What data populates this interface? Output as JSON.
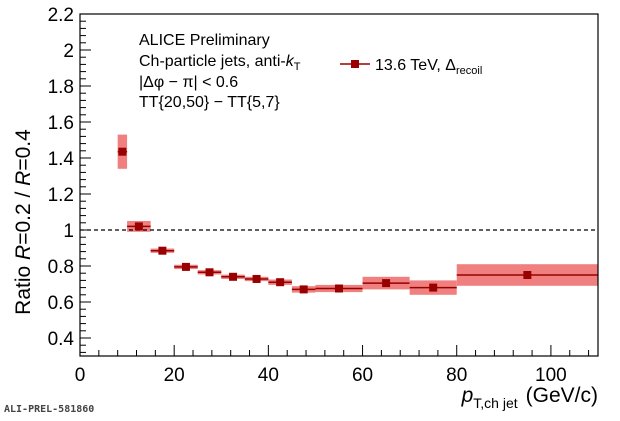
{
  "chart_data": {
    "type": "scatter",
    "title": "",
    "xlabel": {
      "var": "p",
      "sub": "T,ch jet",
      "unit": "(GeV/c)"
    },
    "ylabel": {
      "prefix": "Ratio ",
      "r1": "R",
      "v1": "=0.2 / ",
      "r2": "R",
      "v2": "=0.4"
    },
    "xlim": [
      0,
      110
    ],
    "ylim": [
      0.3,
      2.2
    ],
    "xticks": [
      0,
      20,
      40,
      60,
      80,
      100
    ],
    "yticks": [
      0.4,
      0.6,
      0.8,
      1,
      1.2,
      1.4,
      1.6,
      1.8,
      2,
      2.2
    ],
    "reference_line": 1,
    "series": [
      {
        "name": "13.6 TeV, Δrecoil",
        "color": "#990000",
        "sys_color": "#f08080",
        "points": [
          {
            "x": 9,
            "xlo": 8,
            "xhi": 10,
            "y": 1.435,
            "stat": 0.012,
            "sys": 0.095
          },
          {
            "x": 12.5,
            "xlo": 10,
            "xhi": 15,
            "y": 1.02,
            "stat": 0.01,
            "sys": 0.03
          },
          {
            "x": 17.5,
            "xlo": 15,
            "xhi": 20,
            "y": 0.885,
            "stat": 0.008,
            "sys": 0.012
          },
          {
            "x": 22.5,
            "xlo": 20,
            "xhi": 25,
            "y": 0.795,
            "stat": 0.007,
            "sys": 0.012
          },
          {
            "x": 27.5,
            "xlo": 25,
            "xhi": 30,
            "y": 0.765,
            "stat": 0.007,
            "sys": 0.012
          },
          {
            "x": 32.5,
            "xlo": 30,
            "xhi": 35,
            "y": 0.74,
            "stat": 0.007,
            "sys": 0.012
          },
          {
            "x": 37.5,
            "xlo": 35,
            "xhi": 40,
            "y": 0.728,
            "stat": 0.007,
            "sys": 0.012
          },
          {
            "x": 42.5,
            "xlo": 40,
            "xhi": 45,
            "y": 0.71,
            "stat": 0.007,
            "sys": 0.015
          },
          {
            "x": 47.5,
            "xlo": 45,
            "xhi": 50,
            "y": 0.67,
            "stat": 0.007,
            "sys": 0.018
          },
          {
            "x": 55,
            "xlo": 50,
            "xhi": 60,
            "y": 0.675,
            "stat": 0.008,
            "sys": 0.02
          },
          {
            "x": 65,
            "xlo": 60,
            "xhi": 70,
            "y": 0.705,
            "stat": 0.01,
            "sys": 0.035
          },
          {
            "x": 75,
            "xlo": 70,
            "xhi": 80,
            "y": 0.68,
            "stat": 0.012,
            "sys": 0.04
          },
          {
            "x": 95,
            "xlo": 80,
            "xhi": 110,
            "y": 0.75,
            "stat": 0.015,
            "sys": 0.06
          }
        ]
      }
    ],
    "legend": {
      "position": "top-center",
      "energy": "13.6 TeV, Δ",
      "sub": "recoil"
    },
    "annotations": {
      "line1": "ALICE Preliminary",
      "line2_main": "Ch-particle jets, anti-",
      "line2_k": "k",
      "line2_sub": "T",
      "line3": "|Δφ − π| < 0.6",
      "line4": "TT{20,50} − TT{5,7}"
    }
  },
  "footer_id": "ALI-PREL-581860"
}
